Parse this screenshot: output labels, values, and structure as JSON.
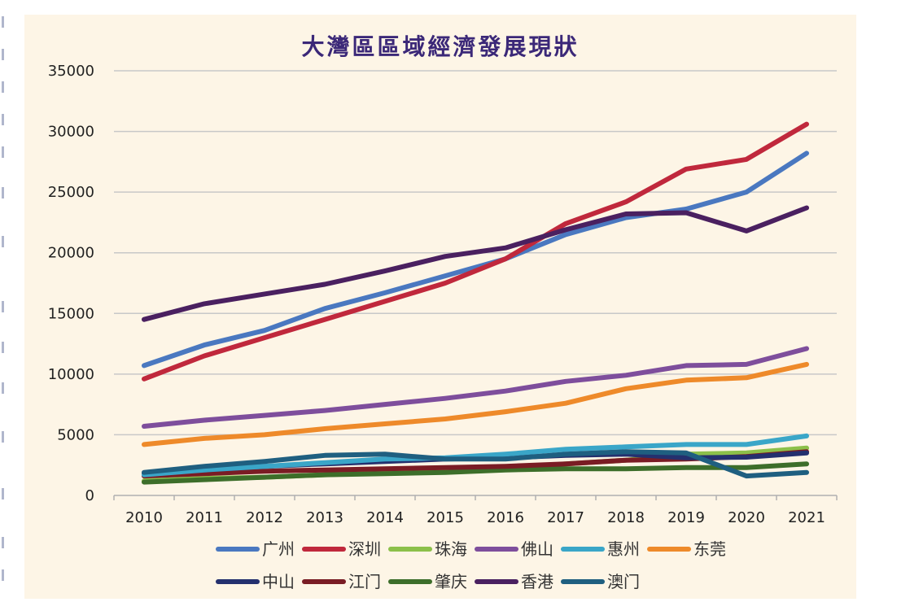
{
  "chart_data": {
    "type": "line",
    "title": "大灣區區域經濟發展現狀",
    "xlabel": "",
    "ylabel": "",
    "ylim": [
      0,
      35000
    ],
    "yticks": [
      0,
      5000,
      10000,
      15000,
      20000,
      25000,
      30000,
      35000
    ],
    "grid": true,
    "legend_position": "bottom",
    "x": [
      "2010",
      "2011",
      "2012",
      "2013",
      "2014",
      "2015",
      "2016",
      "2017",
      "2018",
      "2019",
      "2020",
      "2021"
    ],
    "series": [
      {
        "name": "广州",
        "color": "#4a78c0",
        "values": [
          10700,
          12400,
          13600,
          15400,
          16700,
          18100,
          19500,
          21500,
          22900,
          23600,
          25000,
          28200
        ]
      },
      {
        "name": "深圳",
        "color": "#c0283c",
        "values": [
          9600,
          11500,
          13000,
          14500,
          16000,
          17500,
          19500,
          22400,
          24200,
          26900,
          27700,
          30600
        ]
      },
      {
        "name": "珠海",
        "color": "#8cc04a",
        "values": [
          1200,
          1400,
          1500,
          1700,
          1900,
          2000,
          2200,
          2600,
          2900,
          3400,
          3500,
          3900
        ]
      },
      {
        "name": "佛山",
        "color": "#7e4e9c",
        "values": [
          5700,
          6200,
          6600,
          7000,
          7500,
          8000,
          8600,
          9400,
          9900,
          10700,
          10800,
          12100
        ]
      },
      {
        "name": "惠州",
        "color": "#3aa6c8",
        "values": [
          1700,
          2100,
          2400,
          2700,
          3000,
          3100,
          3400,
          3800,
          4000,
          4200,
          4200,
          4900
        ]
      },
      {
        "name": "东莞",
        "color": "#ee8a2a",
        "values": [
          4200,
          4700,
          5000,
          5500,
          5900,
          6300,
          6900,
          7600,
          8800,
          9500,
          9700,
          10800
        ]
      },
      {
        "name": "中山",
        "color": "#24306e",
        "values": [
          1800,
          2100,
          2400,
          2600,
          2800,
          3000,
          3100,
          3300,
          3400,
          3100,
          3150,
          3500
        ]
      },
      {
        "name": "江门",
        "color": "#7a1c24",
        "values": [
          1600,
          1800,
          2000,
          2100,
          2200,
          2300,
          2400,
          2600,
          2900,
          3000,
          3200,
          3600
        ]
      },
      {
        "name": "肇庆",
        "color": "#3d6e2a",
        "values": [
          1100,
          1300,
          1500,
          1700,
          1800,
          1900,
          2100,
          2200,
          2200,
          2300,
          2300,
          2600
        ]
      },
      {
        "name": "香港",
        "color": "#4a2060",
        "values": [
          14500,
          15800,
          16600,
          17400,
          18500,
          19700,
          20400,
          21900,
          23200,
          23300,
          21800,
          23700
        ]
      },
      {
        "name": "澳门",
        "color": "#1f5f80",
        "values": [
          1900,
          2400,
          2800,
          3300,
          3400,
          3000,
          3000,
          3400,
          3600,
          3500,
          1600,
          1900
        ]
      }
    ]
  }
}
